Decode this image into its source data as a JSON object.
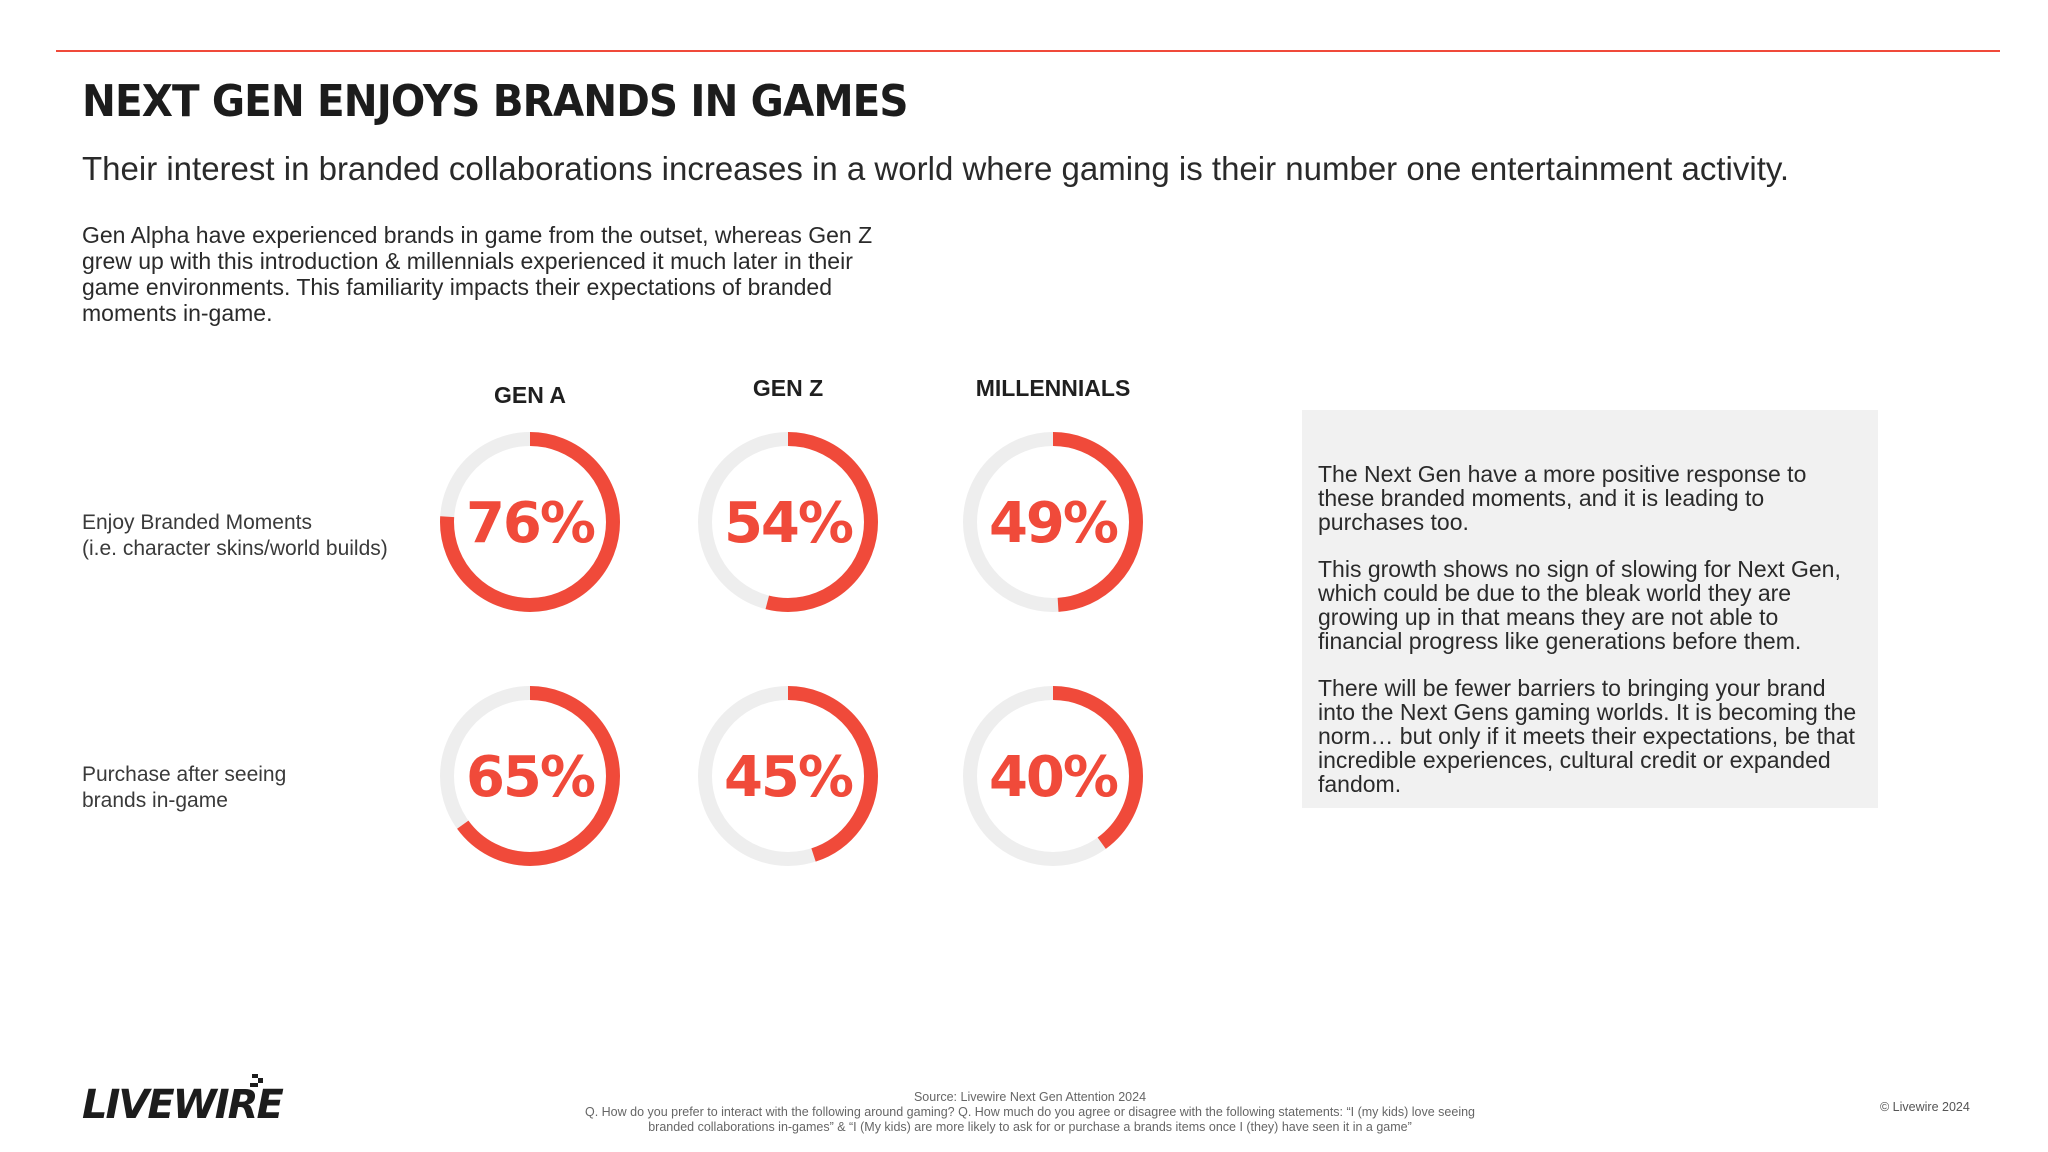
{
  "header": {
    "title": "NEXT GEN ENJOYS BRANDS IN GAMES",
    "subtitle": "Their interest in branded collaborations increases in a world where gaming is their number one entertainment activity.",
    "intro": "Gen Alpha have experienced brands in game from the outset, whereas Gen Z grew up with this introduction & millennials experienced it much later in their game environments. This familiarity impacts their expectations of branded moments in-game."
  },
  "chart_data": {
    "type": "donut",
    "categories": [
      "GEN A",
      "GEN Z",
      "MILLENNIALS"
    ],
    "series": [
      {
        "name": "Enjoy Branded Moments (i.e. character skins/world builds)",
        "label_lines": [
          "Enjoy Branded Moments",
          "(i.e. character skins/world builds)"
        ],
        "values": [
          76,
          54,
          49
        ]
      },
      {
        "name": "Purchase after seeing brands in-game",
        "label_lines": [
          "Purchase after seeing",
          "brands in-game"
        ],
        "values": [
          65,
          45,
          40
        ]
      }
    ],
    "value_suffix": "%",
    "colors": {
      "filled": "#f04a3a",
      "track": "#eeeeee"
    }
  },
  "panel": {
    "paragraphs": [
      "The Next Gen have a more positive response to these branded moments, and it is leading to purchases too.",
      "This growth shows no sign of slowing for Next Gen, which could be due to the bleak world they are growing up in that means they are not able to financial progress like generations before them.",
      "There will be fewer barriers to bringing your brand into the Next Gens gaming worlds. It is becoming the norm… but only if it meets their expectations, be that incredible experiences, cultural credit or expanded fandom."
    ]
  },
  "footer": {
    "logo": "LIVEWIRE",
    "source_lines": [
      "Source: Livewire Next Gen Attention 2024",
      "Q. How do you prefer to interact with the following around gaming? Q. How much do you agree or disagree with the following statements:  “I (my kids) love seeing",
      "branded collaborations in-games” & “I (My kids) are more likely to ask for or purchase a brands items once I (they) have seen it in a game”"
    ],
    "copyright": "© Livewire 2024"
  },
  "colors": {
    "accent": "#f04a3a",
    "panel": "#f1f1f1"
  }
}
